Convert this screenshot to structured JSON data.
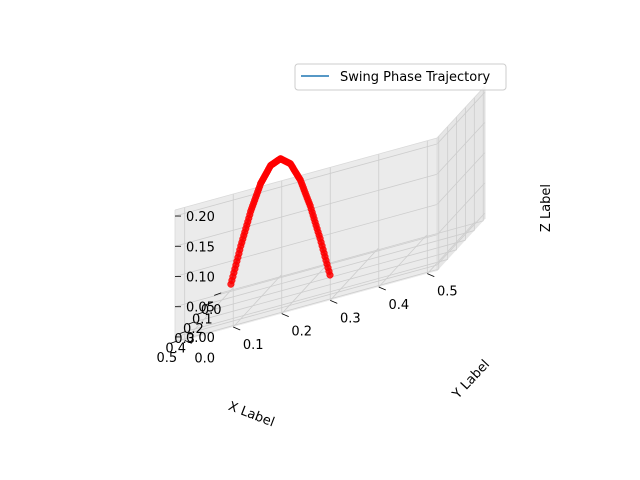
{
  "chart_data": {
    "type": "line",
    "projection": "3d",
    "title": "",
    "xlabel": "X Label",
    "ylabel": "Y Label",
    "zlabel": "Z Label",
    "xlim": [
      -0.02,
      0.52
    ],
    "ylim": [
      -0.02,
      0.52
    ],
    "zlim": [
      -0.01,
      0.21
    ],
    "xticks": [
      "0.0",
      "0.1",
      "0.2",
      "0.3",
      "0.4",
      "0.5"
    ],
    "yticks": [
      "0.0",
      "0.1",
      "0.2",
      "0.3",
      "0.4",
      "0.5"
    ],
    "zticks": [
      "0.00",
      "0.05",
      "0.10",
      "0.15",
      "0.20"
    ],
    "grid": true,
    "legend": {
      "position": "top-right",
      "entries": [
        "Swing Phase Trajectory"
      ]
    },
    "series": [
      {
        "name": "Swing Phase Trajectory",
        "line_color": "#1f77b4",
        "marker_color": "#ff0000",
        "points": [
          {
            "x": 0.0,
            "y": 0.0,
            "z": 0.0
          },
          {
            "x": 0.025,
            "y": 0.025,
            "z": 0.0618
          },
          {
            "x": 0.05,
            "y": 0.05,
            "z": 0.1176
          },
          {
            "x": 0.075,
            "y": 0.075,
            "z": 0.1618
          },
          {
            "x": 0.1,
            "y": 0.1,
            "z": 0.1902
          },
          {
            "x": 0.125,
            "y": 0.125,
            "z": 0.2
          },
          {
            "x": 0.15,
            "y": 0.15,
            "z": 0.1902
          },
          {
            "x": 0.175,
            "y": 0.175,
            "z": 0.1618
          },
          {
            "x": 0.2,
            "y": 0.2,
            "z": 0.1176
          },
          {
            "x": 0.225,
            "y": 0.225,
            "z": 0.0618
          },
          {
            "x": 0.25,
            "y": 0.25,
            "z": 0.0
          }
        ]
      }
    ]
  }
}
